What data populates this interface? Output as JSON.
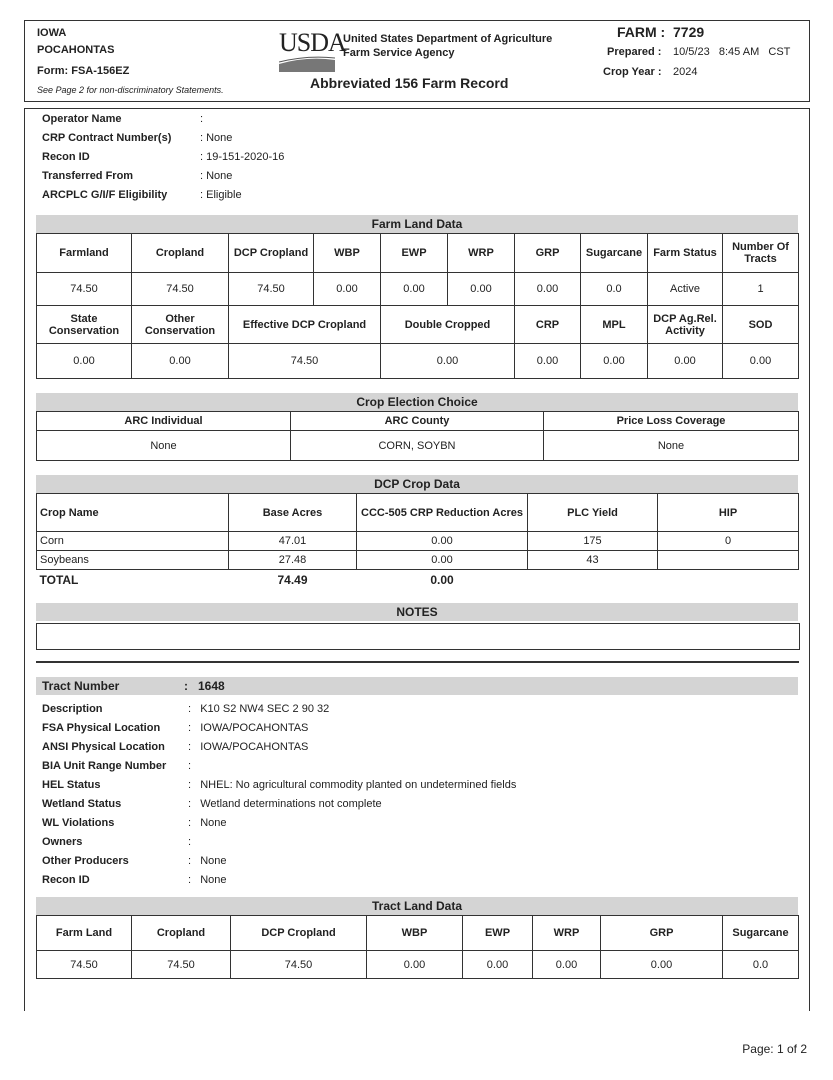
{
  "header": {
    "state": "IOWA",
    "county": "POCAHONTAS",
    "form": "Form:  FSA-156EZ",
    "note": "See Page 2 for non-discriminatory Statements.",
    "logo": "USDA",
    "agency_line1": "United States Department of Agriculture",
    "agency_line2": "Farm Service Agency",
    "title": "Abbreviated 156 Farm Record",
    "farm_label": "FARM :",
    "farm_number": "7729",
    "prepared_label": "Prepared :",
    "prepared_value": "10/5/23   8:45 AM   CST",
    "crop_year_label": "Crop Year :",
    "crop_year_value": "2024"
  },
  "farm_info": [
    {
      "label": "Operator Name",
      "value": ":"
    },
    {
      "label": "CRP Contract Number(s)",
      "value": ": None"
    },
    {
      "label": "Recon ID",
      "value": ": 19-151-2020-16"
    },
    {
      "label": "Transferred From",
      "value": ": None"
    },
    {
      "label": "ARCPLC G/I/F Eligibility",
      "value": ": Eligible"
    }
  ],
  "farm_land_data": {
    "title": "Farm Land Data",
    "header1": [
      "Farmland",
      "Cropland",
      "DCP Cropland",
      "WBP",
      "EWP",
      "WRP",
      "GRP",
      "Sugarcane",
      "Farm Status",
      "Number Of Tracts"
    ],
    "values1": [
      "74.50",
      "74.50",
      "74.50",
      "0.00",
      "0.00",
      "0.00",
      "0.00",
      "0.0",
      "Active",
      "1"
    ],
    "header2": [
      "State Conservation",
      "Other Conservation",
      "Effective DCP Cropland",
      "Double Cropped",
      "CRP",
      "MPL",
      "DCP Ag.Rel. Activity",
      "SOD"
    ],
    "values2": [
      "0.00",
      "0.00",
      "74.50",
      "0.00",
      "0.00",
      "0.00",
      "0.00",
      "0.00"
    ]
  },
  "crop_election": {
    "title": "Crop Election Choice",
    "headers": [
      "ARC Individual",
      "ARC County",
      "Price Loss Coverage"
    ],
    "values": [
      "None",
      "CORN, SOYBN",
      "None"
    ]
  },
  "dcp_crop_data": {
    "title": "DCP Crop Data",
    "headers": [
      "Crop Name",
      "Base Acres",
      "CCC-505 CRP Reduction Acres",
      "PLC Yield",
      "HIP"
    ],
    "rows": [
      [
        "Corn",
        "47.01",
        "0.00",
        "175",
        "0"
      ],
      [
        "Soybeans",
        "27.48",
        "0.00",
        "43",
        ""
      ]
    ],
    "total": [
      "TOTAL",
      "74.49",
      "0.00"
    ]
  },
  "notes": {
    "title": "NOTES",
    "content": ""
  },
  "tract": {
    "number_label": "Tract Number",
    "number_value": ":   1648",
    "info": [
      {
        "label": "Description",
        "value": ":   K10 S2 NW4 SEC 2 90 32"
      },
      {
        "label": "FSA Physical Location",
        "value": ":   IOWA/POCAHONTAS"
      },
      {
        "label": "ANSI Physical Location",
        "value": ":   IOWA/POCAHONTAS"
      },
      {
        "label": "BIA Unit Range Number",
        "value": ":"
      },
      {
        "label": "HEL Status",
        "value": ":   NHEL: No agricultural commodity planted on undetermined fields"
      },
      {
        "label": "Wetland Status",
        "value": ":   Wetland determinations not complete"
      },
      {
        "label": "WL Violations",
        "value": ":   None"
      },
      {
        "label": "Owners",
        "value": ":"
      },
      {
        "label": "Other Producers",
        "value": ":   None"
      },
      {
        "label": "Recon ID",
        "value": ":   None"
      }
    ],
    "land_data": {
      "title": "Tract Land Data",
      "headers": [
        "Farm Land",
        "Cropland",
        "DCP Cropland",
        "WBP",
        "EWP",
        "WRP",
        "GRP",
        "Sugarcane"
      ],
      "values": [
        "74.50",
        "74.50",
        "74.50",
        "0.00",
        "0.00",
        "0.00",
        "0.00",
        "0.0"
      ]
    }
  },
  "footer": {
    "page": "Page: 1 of 2"
  }
}
